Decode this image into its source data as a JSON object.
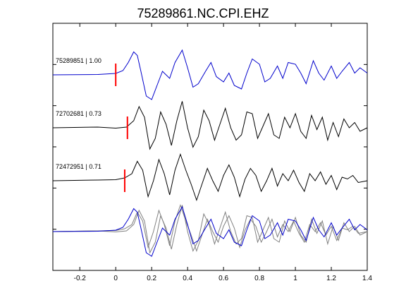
{
  "chart_data": {
    "type": "line",
    "title": "75289861.NC.CPI.EHZ",
    "xlabel": "",
    "ylabel": "",
    "xlim": [
      -0.35,
      1.4
    ],
    "x_ticks": [
      "-0.2",
      "0",
      "0.2",
      "0.4",
      "0.6",
      "0.8",
      "1",
      "1.2",
      "1.4"
    ],
    "x_tick_values": [
      -0.2,
      0,
      0.2,
      0.4,
      0.6,
      0.8,
      1.0,
      1.2,
      1.4
    ],
    "grid": false,
    "colors": {
      "master": "#0000cc",
      "other": "#000000",
      "overlay_other": "#808080",
      "pick": "#ff0000",
      "axes": "#000000"
    },
    "traces": [
      {
        "label": "75289851 | 1.00",
        "color": "#0000cc",
        "pick_time": 0.0,
        "x": [
          -0.35,
          -0.1,
          0.0,
          0.04,
          0.07,
          0.1,
          0.12,
          0.14,
          0.17,
          0.2,
          0.23,
          0.26,
          0.3,
          0.33,
          0.37,
          0.4,
          0.43,
          0.46,
          0.5,
          0.53,
          0.56,
          0.6,
          0.63,
          0.66,
          0.7,
          0.73,
          0.76,
          0.8,
          0.83,
          0.86,
          0.9,
          0.93,
          0.96,
          1.0,
          1.03,
          1.06,
          1.1,
          1.13,
          1.16,
          1.2,
          1.23,
          1.26,
          1.3,
          1.33,
          1.36,
          1.4
        ],
        "y": [
          0.0,
          0.01,
          0.04,
          0.12,
          0.35,
          0.65,
          0.55,
          0.1,
          -0.6,
          -0.7,
          -0.3,
          0.1,
          -0.1,
          0.35,
          0.7,
          0.2,
          -0.35,
          -0.25,
          0.1,
          0.35,
          -0.05,
          -0.2,
          0.05,
          -0.3,
          -0.4,
          0.05,
          0.45,
          0.3,
          -0.2,
          -0.1,
          0.25,
          -0.1,
          0.35,
          0.3,
          0.05,
          -0.25,
          0.4,
          0.05,
          -0.15,
          0.25,
          -0.1,
          0.1,
          0.35,
          0.05,
          0.2,
          0.05
        ]
      },
      {
        "label": "72702681 | 0.73",
        "color": "#000000",
        "pick_time": 0.065,
        "x": [
          -0.35,
          -0.1,
          0.0,
          0.06,
          0.1,
          0.13,
          0.16,
          0.19,
          0.22,
          0.25,
          0.28,
          0.31,
          0.34,
          0.37,
          0.4,
          0.43,
          0.46,
          0.49,
          0.52,
          0.55,
          0.58,
          0.61,
          0.64,
          0.67,
          0.7,
          0.73,
          0.76,
          0.79,
          0.82,
          0.85,
          0.88,
          0.91,
          0.94,
          0.97,
          1.0,
          1.03,
          1.06,
          1.09,
          1.12,
          1.15,
          1.18,
          1.21,
          1.24,
          1.27,
          1.3,
          1.33,
          1.36,
          1.4
        ],
        "y": [
          0.0,
          0.02,
          -0.01,
          0.02,
          0.2,
          0.6,
          0.3,
          -0.6,
          -0.3,
          0.45,
          0.1,
          -0.5,
          0.2,
          0.75,
          0.0,
          -0.55,
          -0.25,
          0.5,
          0.2,
          -0.35,
          0.1,
          0.55,
          0.0,
          -0.35,
          -0.2,
          0.45,
          0.4,
          -0.3,
          0.05,
          0.4,
          -0.2,
          -0.3,
          0.3,
          0.0,
          0.4,
          -0.1,
          -0.3,
          0.35,
          -0.05,
          0.3,
          -0.35,
          0.15,
          -0.25,
          0.25,
          0.0,
          0.15,
          -0.1,
          0.0
        ]
      },
      {
        "label": "72472951 | 0.71",
        "color": "#000000",
        "pick_time": 0.05,
        "x": [
          -0.35,
          -0.1,
          0.0,
          0.05,
          0.09,
          0.12,
          0.15,
          0.18,
          0.21,
          0.24,
          0.27,
          0.3,
          0.33,
          0.36,
          0.39,
          0.42,
          0.45,
          0.48,
          0.51,
          0.54,
          0.57,
          0.6,
          0.63,
          0.66,
          0.69,
          0.72,
          0.75,
          0.78,
          0.81,
          0.84,
          0.87,
          0.9,
          0.93,
          0.96,
          0.99,
          1.02,
          1.05,
          1.08,
          1.11,
          1.14,
          1.17,
          1.2,
          1.23,
          1.26,
          1.29,
          1.32,
          1.35,
          1.4
        ],
        "y": [
          0.0,
          0.02,
          0.03,
          0.08,
          0.2,
          0.55,
          0.3,
          -0.45,
          0.0,
          0.6,
          0.2,
          -0.4,
          0.3,
          0.75,
          0.3,
          -0.1,
          -0.55,
          -0.1,
          0.35,
          0.0,
          -0.3,
          0.15,
          0.45,
          0.1,
          -0.45,
          0.05,
          0.35,
          0.15,
          -0.3,
          0.0,
          0.35,
          -0.15,
          0.2,
          0.0,
          0.3,
          -0.05,
          -0.3,
          0.2,
          0.0,
          0.25,
          -0.1,
          0.15,
          -0.25,
          0.1,
          0.05,
          0.15,
          -0.05,
          0.0
        ]
      }
    ]
  }
}
